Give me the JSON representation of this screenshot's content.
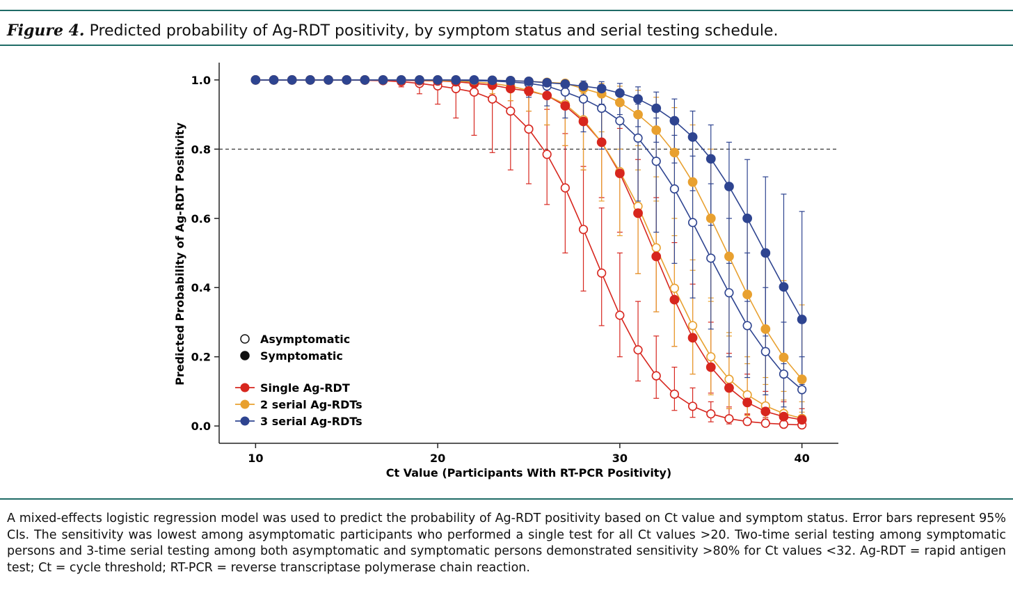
{
  "figure": {
    "label": "Figure 4.",
    "title": "Predicted probability of Ag-RDT positivity, by symptom status and serial testing schedule.",
    "caption": "A mixed-effects logistic regression model was used to predict the probability of Ag-RDT positivity based on Ct value and symptom status. Error bars represent 95% CIs. The sensitivity was lowest among asymptomatic participants who performed a single test for all Ct values >20. Two-time serial testing among symptomatic persons and 3-time serial testing among both asymptomatic and symptomatic persons demonstrated sensitivity >80% for Ct values <32. Ag-RDT = rapid antigen test; Ct = cycle threshold; RT-PCR = reverse transcriptase polymerase chain reaction."
  },
  "chart_data": {
    "type": "line",
    "xlabel": "Ct Value (Participants With RT-PCR Positivity)",
    "ylabel": "Predicted Probability of Ag-RDT Positivity",
    "xlim": [
      8,
      42
    ],
    "ylim": [
      -0.05,
      1.05
    ],
    "xticks": [
      10,
      20,
      30,
      40
    ],
    "yticks": [
      0.0,
      0.2,
      0.4,
      0.6,
      0.8,
      1.0
    ],
    "reference_line": {
      "y": 0.8,
      "style": "dashed"
    },
    "x": [
      10,
      11,
      12,
      13,
      14,
      15,
      16,
      17,
      18,
      19,
      20,
      21,
      22,
      23,
      24,
      25,
      26,
      27,
      28,
      29,
      30,
      31,
      32,
      33,
      34,
      35,
      36,
      37,
      38,
      39,
      40
    ],
    "legend": {
      "placement": "lower-left",
      "markers": [
        {
          "label": "Asymptomatic",
          "fill": "open"
        },
        {
          "label": "Symptomatic",
          "fill": "filled"
        }
      ],
      "lines": [
        {
          "label": "Single Ag-RDT",
          "color": "#d7261e"
        },
        {
          "label": "2 serial Ag-RDTs",
          "color": "#e8a02f"
        },
        {
          "label": "3 serial Ag-RDTs",
          "color": "#2e4490"
        }
      ]
    },
    "series": [
      {
        "name": "",
        "test": "Single Ag-RDT",
        "status": "Asymptomatic",
        "color": "#d7261e",
        "marker": "open",
        "values": [
          1.0,
          1.0,
          1.0,
          1.0,
          1.0,
          1.0,
          0.999,
          0.998,
          0.995,
          0.99,
          0.983,
          0.975,
          0.965,
          0.945,
          0.91,
          0.858,
          0.785,
          0.688,
          0.568,
          0.442,
          0.32,
          0.22,
          0.145,
          0.092,
          0.057,
          0.035,
          0.021,
          0.013,
          0.008,
          0.005,
          0.003
        ],
        "lower": [
          1.0,
          1.0,
          1.0,
          1.0,
          0.999,
          0.998,
          0.996,
          0.99,
          0.98,
          0.96,
          0.93,
          0.89,
          0.84,
          0.79,
          0.74,
          0.7,
          0.64,
          0.5,
          0.39,
          0.29,
          0.2,
          0.13,
          0.08,
          0.045,
          0.025,
          0.012,
          0.006,
          0.003,
          0.002,
          0.001,
          0.0
        ],
        "upper": [
          1.0,
          1.0,
          1.0,
          1.0,
          1.0,
          1.0,
          1.0,
          1.0,
          1.0,
          0.999,
          0.998,
          0.996,
          0.993,
          0.985,
          0.975,
          0.955,
          0.915,
          0.845,
          0.75,
          0.63,
          0.5,
          0.36,
          0.26,
          0.17,
          0.11,
          0.07,
          0.05,
          0.035,
          0.025,
          0.018,
          0.012
        ]
      },
      {
        "name": "",
        "test": "Single Ag-RDT",
        "status": "Symptomatic",
        "color": "#d7261e",
        "marker": "filled",
        "values": [
          1.0,
          1.0,
          1.0,
          1.0,
          1.0,
          1.0,
          1.0,
          0.999,
          0.999,
          0.998,
          0.997,
          0.995,
          0.99,
          0.985,
          0.975,
          0.968,
          0.955,
          0.925,
          0.88,
          0.82,
          0.73,
          0.615,
          0.49,
          0.365,
          0.255,
          0.17,
          0.11,
          0.068,
          0.042,
          0.027,
          0.018
        ],
        "lower": [
          1.0,
          1.0,
          1.0,
          1.0,
          1.0,
          1.0,
          0.999,
          0.998,
          0.996,
          0.994,
          0.99,
          0.985,
          0.975,
          0.96,
          0.94,
          0.91,
          0.87,
          0.81,
          0.74,
          0.66,
          0.56,
          0.44,
          0.33,
          0.23,
          0.15,
          0.095,
          0.055,
          0.033,
          0.02,
          0.012,
          0.007
        ],
        "upper": [
          1.0,
          1.0,
          1.0,
          1.0,
          1.0,
          1.0,
          1.0,
          1.0,
          1.0,
          1.0,
          1.0,
          0.999,
          0.998,
          0.997,
          0.995,
          0.992,
          0.985,
          0.975,
          0.955,
          0.92,
          0.86,
          0.77,
          0.66,
          0.53,
          0.41,
          0.3,
          0.21,
          0.15,
          0.1,
          0.07,
          0.05
        ]
      },
      {
        "name": "",
        "test": "2 serial Ag-RDTs",
        "status": "Asymptomatic",
        "color": "#e8a02f",
        "marker": "open",
        "values": [
          1.0,
          1.0,
          1.0,
          1.0,
          1.0,
          1.0,
          1.0,
          1.0,
          1.0,
          0.999,
          0.998,
          0.997,
          0.994,
          0.99,
          0.982,
          0.97,
          0.955,
          0.93,
          0.885,
          0.82,
          0.735,
          0.635,
          0.515,
          0.398,
          0.29,
          0.2,
          0.135,
          0.09,
          0.058,
          0.036,
          0.022
        ],
        "lower": [
          1.0,
          1.0,
          1.0,
          1.0,
          1.0,
          1.0,
          0.999,
          0.998,
          0.997,
          0.994,
          0.99,
          0.985,
          0.975,
          0.96,
          0.94,
          0.91,
          0.87,
          0.81,
          0.74,
          0.65,
          0.55,
          0.44,
          0.33,
          0.23,
          0.15,
          0.09,
          0.05,
          0.03,
          0.018,
          0.01,
          0.005
        ],
        "upper": [
          1.0,
          1.0,
          1.0,
          1.0,
          1.0,
          1.0,
          1.0,
          1.0,
          1.0,
          1.0,
          1.0,
          0.999,
          0.999,
          0.998,
          0.996,
          0.993,
          0.987,
          0.977,
          0.96,
          0.93,
          0.88,
          0.81,
          0.72,
          0.6,
          0.48,
          0.37,
          0.27,
          0.2,
          0.14,
          0.1,
          0.07
        ]
      },
      {
        "name": "",
        "test": "2 serial Ag-RDTs",
        "status": "Symptomatic",
        "color": "#e8a02f",
        "marker": "filled",
        "values": [
          1.0,
          1.0,
          1.0,
          1.0,
          1.0,
          1.0,
          1.0,
          1.0,
          1.0,
          1.0,
          1.0,
          1.0,
          0.999,
          0.999,
          0.998,
          0.996,
          0.993,
          0.99,
          0.975,
          0.96,
          0.935,
          0.9,
          0.855,
          0.79,
          0.705,
          0.6,
          0.49,
          0.38,
          0.28,
          0.198,
          0.135
        ],
        "lower": [
          1.0,
          1.0,
          1.0,
          1.0,
          1.0,
          1.0,
          1.0,
          1.0,
          0.999,
          0.999,
          0.998,
          0.996,
          0.993,
          0.988,
          0.98,
          0.968,
          0.95,
          0.93,
          0.89,
          0.85,
          0.8,
          0.74,
          0.65,
          0.55,
          0.45,
          0.36,
          0.26,
          0.18,
          0.12,
          0.075,
          0.04
        ],
        "upper": [
          1.0,
          1.0,
          1.0,
          1.0,
          1.0,
          1.0,
          1.0,
          1.0,
          1.0,
          1.0,
          1.0,
          1.0,
          1.0,
          1.0,
          1.0,
          0.999,
          0.998,
          0.997,
          0.994,
          0.99,
          0.982,
          0.97,
          0.95,
          0.92,
          0.87,
          0.8,
          0.7,
          0.59,
          0.5,
          0.42,
          0.35
        ]
      },
      {
        "name": "",
        "test": "3 serial Ag-RDTs",
        "status": "Asymptomatic",
        "color": "#2e4490",
        "marker": "open",
        "values": [
          1.0,
          1.0,
          1.0,
          1.0,
          1.0,
          1.0,
          1.0,
          1.0,
          1.0,
          1.0,
          1.0,
          0.999,
          0.998,
          0.997,
          0.994,
          0.99,
          0.982,
          0.965,
          0.945,
          0.918,
          0.882,
          0.832,
          0.765,
          0.685,
          0.588,
          0.485,
          0.385,
          0.29,
          0.215,
          0.15,
          0.105
        ],
        "lower": [
          1.0,
          1.0,
          1.0,
          1.0,
          1.0,
          1.0,
          1.0,
          0.999,
          0.999,
          0.998,
          0.996,
          0.993,
          0.988,
          0.98,
          0.968,
          0.95,
          0.925,
          0.89,
          0.85,
          0.8,
          0.73,
          0.65,
          0.56,
          0.47,
          0.37,
          0.28,
          0.2,
          0.14,
          0.09,
          0.055,
          0.03
        ],
        "upper": [
          1.0,
          1.0,
          1.0,
          1.0,
          1.0,
          1.0,
          1.0,
          1.0,
          1.0,
          1.0,
          1.0,
          1.0,
          1.0,
          0.999,
          0.999,
          0.998,
          0.996,
          0.992,
          0.985,
          0.975,
          0.96,
          0.93,
          0.89,
          0.84,
          0.78,
          0.7,
          0.6,
          0.5,
          0.4,
          0.3,
          0.2
        ]
      },
      {
        "name": "",
        "test": "3 serial Ag-RDTs",
        "status": "Symptomatic",
        "color": "#2e4490",
        "marker": "filled",
        "values": [
          1.0,
          1.0,
          1.0,
          1.0,
          1.0,
          1.0,
          1.0,
          1.0,
          1.0,
          1.0,
          1.0,
          1.0,
          1.0,
          0.999,
          0.998,
          0.996,
          0.992,
          0.988,
          0.982,
          0.975,
          0.962,
          0.945,
          0.918,
          0.882,
          0.835,
          0.772,
          0.692,
          0.6,
          0.5,
          0.402,
          0.308
        ],
        "lower": [
          1.0,
          1.0,
          1.0,
          1.0,
          1.0,
          1.0,
          1.0,
          1.0,
          1.0,
          0.999,
          0.999,
          0.998,
          0.996,
          0.993,
          0.989,
          0.983,
          0.975,
          0.963,
          0.948,
          0.93,
          0.9,
          0.865,
          0.82,
          0.76,
          0.68,
          0.58,
          0.47,
          0.36,
          0.26,
          0.18,
          0.12
        ],
        "upper": [
          1.0,
          1.0,
          1.0,
          1.0,
          1.0,
          1.0,
          1.0,
          1.0,
          1.0,
          1.0,
          1.0,
          1.0,
          1.0,
          1.0,
          1.0,
          0.999,
          0.999,
          0.998,
          0.997,
          0.995,
          0.99,
          0.98,
          0.965,
          0.945,
          0.91,
          0.87,
          0.82,
          0.77,
          0.72,
          0.67,
          0.62
        ]
      }
    ]
  }
}
